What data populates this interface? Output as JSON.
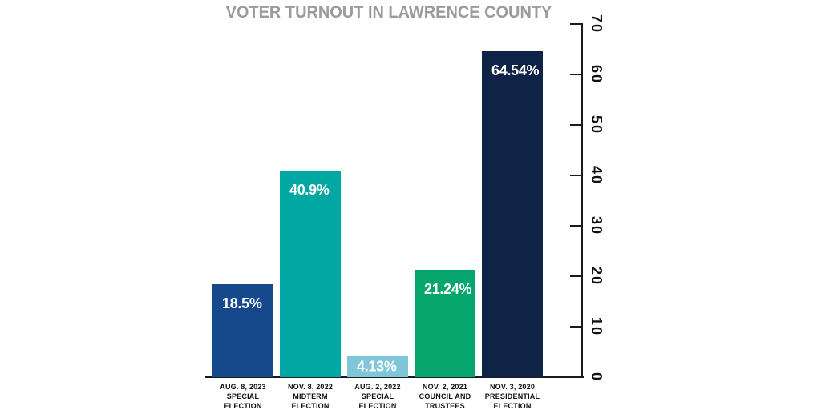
{
  "chart_data": {
    "type": "bar",
    "title": "VOTER TURNOUT IN LAWRENCE COUNTY",
    "xlabel": "",
    "ylabel": "",
    "ylim": [
      0,
      70
    ],
    "y_ticks": [
      0,
      10,
      20,
      30,
      40,
      50,
      60,
      70
    ],
    "y_axis_side": "right",
    "y_tick_label_rotation_deg": 90,
    "grid": false,
    "legend": false,
    "background_color": "#ffffff",
    "title_color": "#9b9b9b",
    "axis_color": "#1a1a1a",
    "value_label_color": "#ffffff",
    "categories": [
      "AUG. 8, 2023 SPECIAL ELECTION",
      "NOV. 8, 2022 MIDTERM ELECTION",
      "AUG. 2, 2022 SPECIAL ELECTION",
      "NOV. 2, 2021 COUNCIL AND TRUSTEES",
      "NOV. 3, 2020 PRESIDENTIAL ELECTION"
    ],
    "values": [
      18.5,
      40.9,
      4.13,
      21.24,
      64.54
    ],
    "bars": [
      {
        "value": 18.5,
        "value_label": "18.5%",
        "color": "#15498c",
        "category_lines": [
          "AUG. 8, 2023",
          "SPECIAL",
          "ELECTION"
        ]
      },
      {
        "value": 40.9,
        "value_label": "40.9%",
        "color": "#00a7a3",
        "category_lines": [
          "NOV. 8, 2022",
          "MIDTERM",
          "ELECTION"
        ]
      },
      {
        "value": 4.13,
        "value_label": "4.13%",
        "color": "#7fc6d9",
        "category_lines": [
          "AUG. 2, 2022",
          "SPECIAL",
          "ELECTION"
        ]
      },
      {
        "value": 21.24,
        "value_label": "21.24%",
        "color": "#06a56e",
        "category_lines": [
          "NOV. 2, 2021",
          "COUNCIL AND",
          "TRUSTEES"
        ]
      },
      {
        "value": 64.54,
        "value_label": "64.54%",
        "color": "#0f2347",
        "category_lines": [
          "NOV. 3, 2020",
          "PRESIDENTIAL",
          "ELECTION"
        ]
      }
    ]
  }
}
